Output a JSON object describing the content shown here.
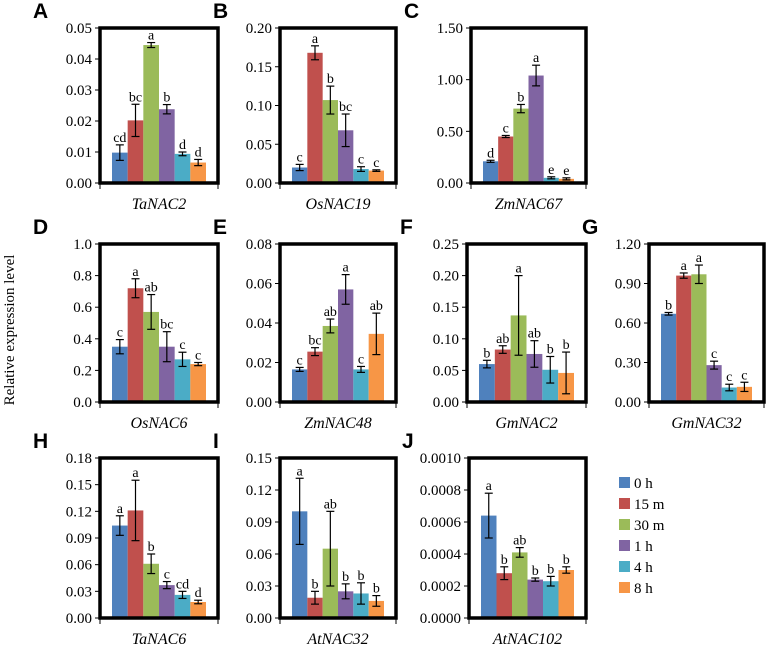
{
  "chart_data": {
    "type": "bar",
    "ylabel": "Relative expression level",
    "legend": {
      "placement": "bottom-right",
      "entries": [
        "0 h",
        "15 m",
        "30 m",
        "1 h",
        "4 h",
        "8 h"
      ],
      "colors": [
        "#4F81BD",
        "#C0504D",
        "#9BBB59",
        "#8064A2",
        "#4BACC6",
        "#F79646"
      ]
    },
    "panels": [
      {
        "letter": "A",
        "gene": "TaNAC2",
        "ylim": [
          0,
          0.05
        ],
        "ticks": [
          "0.00",
          "0.01",
          "0.02",
          "0.03",
          "0.04",
          "0.05"
        ],
        "values": [
          0.0098,
          0.0202,
          0.0445,
          0.0238,
          0.0094,
          0.0066
        ],
        "errors": [
          0.0025,
          0.0052,
          0.0008,
          0.0015,
          0.0006,
          0.001
        ],
        "sig": [
          "cd",
          "bc",
          "a",
          "b",
          "d",
          "d"
        ]
      },
      {
        "letter": "B",
        "gene": "OsNAC19",
        "ylim": [
          0,
          0.2
        ],
        "ticks": [
          "0.00",
          "0.05",
          "0.10",
          "0.15",
          "0.20"
        ],
        "values": [
          0.02,
          0.168,
          0.107,
          0.068,
          0.018,
          0.016
        ],
        "errors": [
          0.004,
          0.009,
          0.018,
          0.021,
          0.003,
          0.001
        ],
        "sig": [
          "c",
          "a",
          "b",
          "bc",
          "c",
          "c"
        ]
      },
      {
        "letter": "C",
        "gene": "ZmNAC67",
        "ylim": [
          0,
          1.5
        ],
        "ticks": [
          "0.00",
          "0.50",
          "1.00",
          "1.50"
        ],
        "values": [
          0.21,
          0.45,
          0.72,
          1.04,
          0.05,
          0.04
        ],
        "errors": [
          0.01,
          0.01,
          0.04,
          0.1,
          0.01,
          0.01
        ],
        "sig": [
          "d",
          "c",
          "b",
          "a",
          "e",
          "e"
        ]
      },
      {
        "letter": "D",
        "gene": "OsNAC6",
        "ylim": [
          0,
          1.0
        ],
        "ticks": [
          "0.0",
          "0.2",
          "0.4",
          "0.6",
          "0.8",
          "1.0"
        ],
        "values": [
          0.35,
          0.72,
          0.57,
          0.35,
          0.27,
          0.24
        ],
        "errors": [
          0.045,
          0.06,
          0.11,
          0.095,
          0.045,
          0.01
        ],
        "sig": [
          "c",
          "a",
          "ab",
          "bc",
          "c",
          "c"
        ]
      },
      {
        "letter": "E",
        "gene": "ZmNAC48",
        "ylim": [
          0,
          0.08
        ],
        "ticks": [
          "0.00",
          "0.02",
          "0.04",
          "0.06",
          "0.08"
        ],
        "values": [
          0.0165,
          0.0255,
          0.0385,
          0.057,
          0.0165,
          0.0345
        ],
        "errors": [
          0.001,
          0.002,
          0.0035,
          0.0075,
          0.0015,
          0.0105
        ],
        "sig": [
          "c",
          "bc",
          "ab",
          "a",
          "c",
          "ab"
        ]
      },
      {
        "letter": "F",
        "gene": "GmNAC2",
        "ylim": [
          0,
          0.25
        ],
        "ticks": [
          "0.00",
          "0.05",
          "0.10",
          "0.15",
          "0.20",
          "0.25"
        ],
        "values": [
          0.06,
          0.083,
          0.137,
          0.076,
          0.051,
          0.046
        ],
        "errors": [
          0.006,
          0.006,
          0.063,
          0.021,
          0.021,
          0.033
        ],
        "sig": [
          "b",
          "ab",
          "a",
          "ab",
          "b",
          "b"
        ]
      },
      {
        "letter": "G",
        "gene": "GmNAC32",
        "ylim": [
          0,
          1.2
        ],
        "ticks": [
          "0.00",
          "0.30",
          "0.60",
          "0.90",
          "1.20"
        ],
        "values": [
          0.67,
          0.96,
          0.97,
          0.28,
          0.11,
          0.115
        ],
        "errors": [
          0.01,
          0.02,
          0.07,
          0.03,
          0.025,
          0.035
        ],
        "sig": [
          "b",
          "a",
          "a",
          "c",
          "c",
          "c"
        ]
      },
      {
        "letter": "H",
        "gene": "TaNAC6",
        "ylim": [
          0,
          0.18
        ],
        "ticks": [
          "0.00",
          "0.03",
          "0.06",
          "0.09",
          "0.12",
          "0.15",
          "0.18"
        ],
        "values": [
          0.104,
          0.121,
          0.061,
          0.037,
          0.026,
          0.018
        ],
        "errors": [
          0.011,
          0.034,
          0.011,
          0.004,
          0.004,
          0.002
        ],
        "sig": [
          "a",
          "a",
          "b",
          "c",
          "cd",
          "d"
        ]
      },
      {
        "letter": "I",
        "gene": "AtNAC32",
        "ylim": [
          0,
          0.15
        ],
        "ticks": [
          "0.00",
          "0.03",
          "0.06",
          "0.09",
          "0.12",
          "0.15"
        ],
        "values": [
          0.1,
          0.019,
          0.065,
          0.025,
          0.023,
          0.016
        ],
        "errors": [
          0.031,
          0.006,
          0.035,
          0.007,
          0.01,
          0.005
        ],
        "sig": [
          "a",
          "b",
          "ab",
          "b",
          "b",
          "b"
        ]
      },
      {
        "letter": "J",
        "gene": "AtNAC102",
        "ylim": [
          0,
          0.001
        ],
        "ticks": [
          "0.0000",
          "0.0002",
          "0.0004",
          "0.0006",
          "0.0008",
          "0.0010"
        ],
        "values": [
          0.00064,
          0.00028,
          0.00041,
          0.00024,
          0.00023,
          0.0003
        ],
        "errors": [
          0.00014,
          4e-05,
          3e-05,
          1e-05,
          3e-05,
          2e-05
        ],
        "sig": [
          "a",
          "b",
          "ab",
          "b",
          "b",
          "b"
        ]
      }
    ]
  }
}
